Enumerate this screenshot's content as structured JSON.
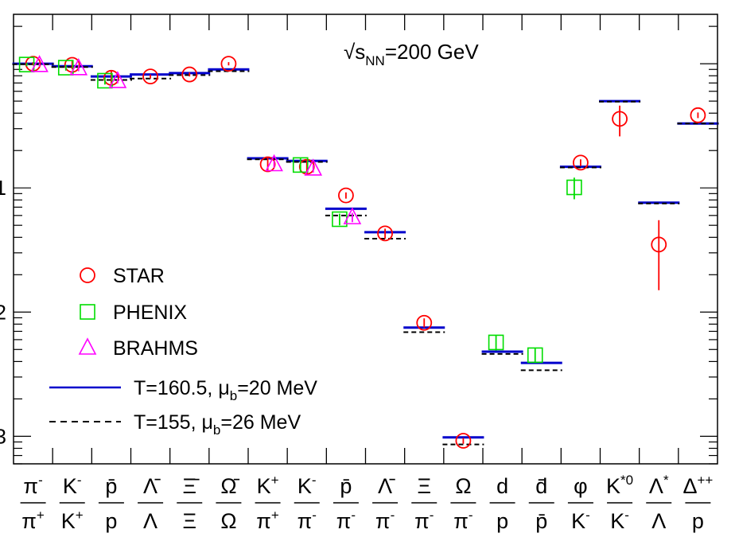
{
  "chart_data": {
    "type": "scatter",
    "annotation": "√s",
    "annotation_sub": "NN",
    "annotation_rest": "=200 GeV",
    "y_scale": "log",
    "ylim": [
      0.0006,
      2.5
    ],
    "y_tick_labels": [
      "1",
      "2",
      "3"
    ],
    "categories": [
      {
        "num": "π-",
        "den": "π+"
      },
      {
        "num": "K-",
        "den": "K+"
      },
      {
        "num": "p̄",
        "den": "p"
      },
      {
        "num": "Λ̄",
        "den": "Λ"
      },
      {
        "num": "Ξ̄",
        "den": "Ξ"
      },
      {
        "num": "Ω̄",
        "den": "Ω"
      },
      {
        "num": "K+",
        "den": "π+"
      },
      {
        "num": "K-",
        "den": "π-"
      },
      {
        "num": "p̄",
        "den": "π-"
      },
      {
        "num": "Λ̄",
        "den": "π-"
      },
      {
        "num": "Ξ",
        "den": "π-"
      },
      {
        "num": "Ω",
        "den": "π-"
      },
      {
        "num": "d",
        "den": "p"
      },
      {
        "num": "d̄",
        "den": "p̄"
      },
      {
        "num": "φ",
        "den": "K-"
      },
      {
        "num": "K*0",
        "den": "K-"
      },
      {
        "num": "Λ*",
        "den": "Λ"
      },
      {
        "num": "Δ++",
        "den": "p"
      }
    ],
    "series": [
      {
        "name": "STAR",
        "marker": "circle",
        "color": "#ff0000",
        "points": [
          [
            0,
            1.0,
            0.03
          ],
          [
            1,
            0.98,
            0.08
          ],
          [
            2,
            0.77,
            0.1
          ],
          [
            3,
            0.79,
            0.03
          ],
          [
            4,
            0.82,
            0.03
          ],
          [
            5,
            1.0,
            0.03
          ],
          [
            6,
            0.155,
            0.02
          ],
          [
            7,
            0.148,
            0.02
          ],
          [
            8,
            0.087,
            0.005
          ],
          [
            9,
            0.043,
            0.004
          ],
          [
            10,
            0.0082,
            0.0007
          ],
          [
            11,
            0.00092,
            5e-05
          ],
          [
            14,
            0.16,
            0.01
          ],
          [
            15,
            0.36,
            0.1
          ],
          [
            16,
            0.035,
            0.02
          ],
          [
            17,
            0.385,
            0.02
          ]
        ]
      },
      {
        "name": "PHENIX",
        "marker": "square",
        "color": "#00dd00",
        "points": [
          [
            0,
            0.985,
            0.03
          ],
          [
            1,
            0.93,
            0.05
          ],
          [
            2,
            0.73,
            0.05
          ],
          [
            7,
            0.153,
            0.02
          ],
          [
            8,
            0.056,
            0.006
          ],
          [
            12,
            0.0057,
            0.0008
          ],
          [
            13,
            0.0045,
            0.0006
          ],
          [
            14,
            0.101,
            0.02
          ]
        ]
      },
      {
        "name": "BRAHMS",
        "marker": "triangle",
        "color": "#ff00ff",
        "points": [
          [
            0,
            0.975,
            0.03
          ],
          [
            1,
            0.92,
            0.05
          ],
          [
            2,
            0.725,
            0.03
          ],
          [
            6,
            0.155,
            0.01
          ],
          [
            7,
            0.143,
            0.01
          ],
          [
            8,
            0.058,
            0.005
          ]
        ]
      },
      {
        "name": "T=160.5, μb=20 MeV",
        "label_main": "T=160.5, μ",
        "label_sub": "b",
        "label_rest": "=20 MeV",
        "line": "solid",
        "color": "#0000cc",
        "values": [
          1.0,
          0.955,
          0.79,
          0.82,
          0.84,
          0.9,
          0.173,
          0.165,
          0.068,
          0.044,
          0.0075,
          0.00098,
          0.0048,
          0.0039,
          0.148,
          0.5,
          0.076,
          0.33
        ]
      },
      {
        "name": "T=155, μb=26 MeV",
        "label_main": "T=155, μ",
        "label_sub": "b",
        "label_rest": "=26 MeV",
        "line": "dashed",
        "color": "#000000",
        "values": [
          0.99,
          0.94,
          0.74,
          0.76,
          0.81,
          0.87,
          0.17,
          0.162,
          0.06,
          0.039,
          0.0069,
          0.00086,
          0.0046,
          0.0034,
          0.146,
          0.495,
          0.075,
          0.33
        ]
      }
    ],
    "legend_placement": "bottom-left"
  }
}
